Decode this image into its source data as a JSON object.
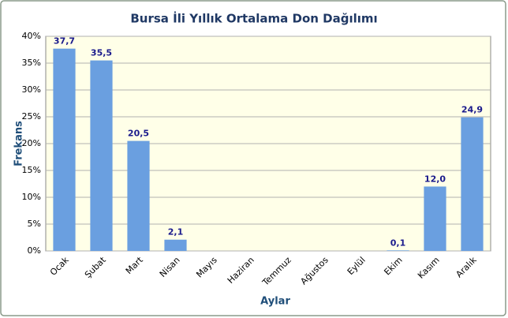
{
  "chart_data": {
    "type": "bar",
    "title": "Bursa İli Yıllık Ortalama Don Dağılımı",
    "x_label": "Aylar",
    "y_label": "Frekans",
    "categories": [
      "Ocak",
      "Şubat",
      "Mart",
      "Nisan",
      "Mayıs",
      "Haziran",
      "Temmuz",
      "Ağustos",
      "Eylül",
      "Ekim",
      "Kasım",
      "Aralık"
    ],
    "values": [
      37.7,
      35.5,
      20.5,
      2.1,
      0,
      0,
      0,
      0,
      0,
      0.1,
      12.0,
      24.9
    ],
    "value_labels": [
      "37,7",
      "35,5",
      "20,5",
      "2,1",
      null,
      null,
      null,
      null,
      null,
      "0,1",
      "12,0",
      "24,9"
    ],
    "color": "#6a9fe0",
    "ylim": [
      0,
      40
    ],
    "yticks": [
      {
        "value": 0,
        "label": "0%"
      },
      {
        "value": 5,
        "label": "5%"
      },
      {
        "value": 10,
        "label": "10%"
      },
      {
        "value": 15,
        "label": "15%"
      },
      {
        "value": 20,
        "label": "20%"
      },
      {
        "value": 25,
        "label": "25%"
      },
      {
        "value": 30,
        "label": "30%"
      },
      {
        "value": 35,
        "label": "35%"
      },
      {
        "value": 40,
        "label": "40%"
      }
    ],
    "grid": true
  }
}
